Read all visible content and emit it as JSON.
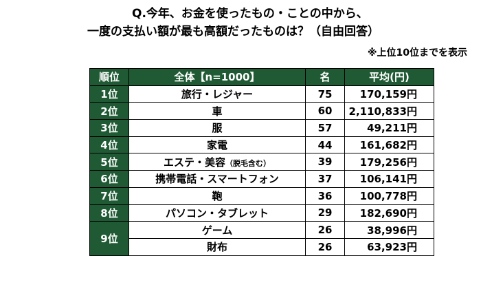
{
  "title": {
    "line1": "Q.今年、お金を使ったもの・ことの中から、",
    "line2": "一度の支払い額が最も高額だったものは？（自由回答）"
  },
  "note": "※上位10位までを表示",
  "table": {
    "headers": [
      "順位",
      "全体【n=1000】",
      "名",
      "平均(円)"
    ],
    "rows": [
      {
        "rank": "1位",
        "item": "旅行・レジャー",
        "item_note": "",
        "count": "75",
        "avg": "170,159円"
      },
      {
        "rank": "2位",
        "item": "車",
        "item_note": "",
        "count": "60",
        "avg": "2,110,833円"
      },
      {
        "rank": "3位",
        "item": "服",
        "item_note": "",
        "count": "57",
        "avg": "49,211円"
      },
      {
        "rank": "4位",
        "item": "家電",
        "item_note": "",
        "count": "44",
        "avg": "161,682円"
      },
      {
        "rank": "5位",
        "item": "エステ・美容",
        "item_note": "（脱毛含む）",
        "count": "39",
        "avg": "179,256円"
      },
      {
        "rank": "6位",
        "item": "携帯電話・スマートフォン",
        "item_note": "",
        "count": "37",
        "avg": "106,141円"
      },
      {
        "rank": "7位",
        "item": "鞄",
        "item_note": "",
        "count": "36",
        "avg": "100,778円"
      },
      {
        "rank": "8位",
        "item": "パソコン・タブレット",
        "item_note": "",
        "count": "29",
        "avg": "182,690円"
      },
      {
        "rank": "9位",
        "item": "ゲーム",
        "item_note": "",
        "count": "26",
        "avg": "38,996円"
      },
      {
        "rank": "",
        "item": "財布",
        "item_note": "",
        "count": "26",
        "avg": "63,923円"
      }
    ]
  },
  "colors": {
    "header_bg": "#1f5a34",
    "header_text": "#ffffff"
  }
}
